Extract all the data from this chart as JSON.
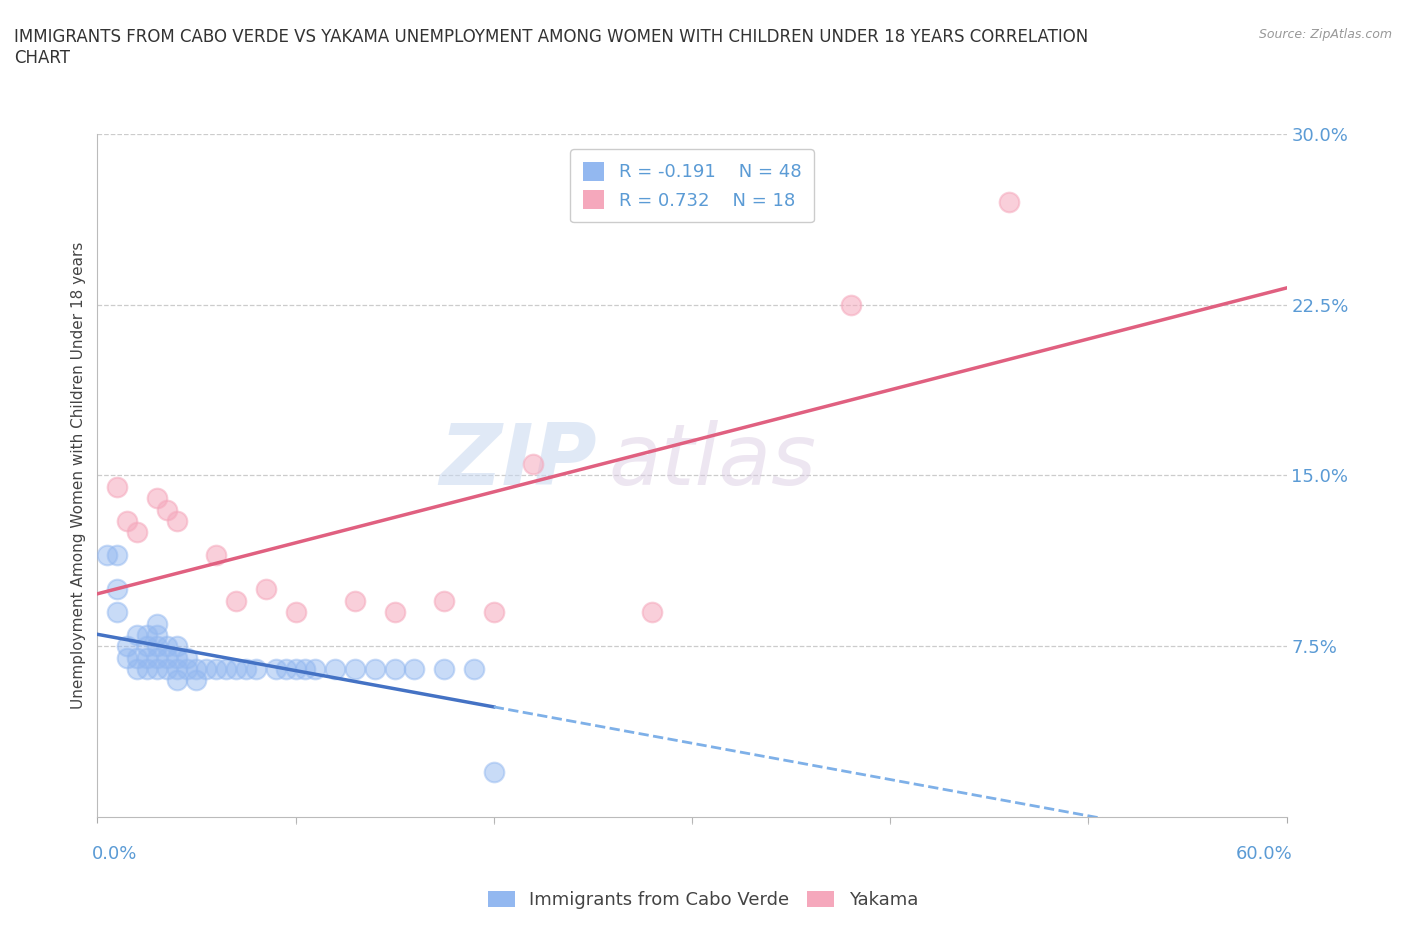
{
  "title": "IMMIGRANTS FROM CABO VERDE VS YAKAMA UNEMPLOYMENT AMONG WOMEN WITH CHILDREN UNDER 18 YEARS CORRELATION\nCHART",
  "source": "Source: ZipAtlas.com",
  "ylabel": "Unemployment Among Women with Children Under 18 years",
  "xlim": [
    0,
    0.6
  ],
  "ylim": [
    0,
    0.3
  ],
  "yticks": [
    0.075,
    0.15,
    0.225,
    0.3
  ],
  "ytick_labels": [
    "7.5%",
    "15.0%",
    "22.5%",
    "30.0%"
  ],
  "xtick_left_label": "0.0%",
  "xtick_right_label": "60.0%",
  "cabo_verde_color": "#93b8f0",
  "yakama_color": "#f5a8bc",
  "cabo_verde_line_solid_color": "#4472c4",
  "cabo_verde_line_dash_color": "#7eb0e8",
  "yakama_line_color": "#e06080",
  "cabo_verde_R": -0.191,
  "cabo_verde_N": 48,
  "yakama_R": 0.732,
  "yakama_N": 18,
  "watermark_top": "ZIP",
  "watermark_bottom": "atlas",
  "cabo_verde_x": [
    0.005,
    0.01,
    0.01,
    0.01,
    0.015,
    0.015,
    0.02,
    0.02,
    0.02,
    0.025,
    0.025,
    0.025,
    0.025,
    0.03,
    0.03,
    0.03,
    0.03,
    0.03,
    0.035,
    0.035,
    0.035,
    0.04,
    0.04,
    0.04,
    0.04,
    0.045,
    0.045,
    0.05,
    0.05,
    0.055,
    0.06,
    0.065,
    0.07,
    0.075,
    0.08,
    0.09,
    0.095,
    0.1,
    0.105,
    0.11,
    0.12,
    0.13,
    0.14,
    0.15,
    0.16,
    0.175,
    0.19,
    0.2
  ],
  "cabo_verde_y": [
    0.115,
    0.09,
    0.1,
    0.115,
    0.07,
    0.075,
    0.065,
    0.07,
    0.08,
    0.065,
    0.07,
    0.075,
    0.08,
    0.065,
    0.07,
    0.075,
    0.08,
    0.085,
    0.065,
    0.07,
    0.075,
    0.06,
    0.065,
    0.07,
    0.075,
    0.065,
    0.07,
    0.06,
    0.065,
    0.065,
    0.065,
    0.065,
    0.065,
    0.065,
    0.065,
    0.065,
    0.065,
    0.065,
    0.065,
    0.065,
    0.065,
    0.065,
    0.065,
    0.065,
    0.065,
    0.065,
    0.065,
    0.02
  ],
  "yakama_x": [
    0.01,
    0.015,
    0.02,
    0.03,
    0.035,
    0.04,
    0.06,
    0.07,
    0.085,
    0.1,
    0.13,
    0.15,
    0.175,
    0.2,
    0.22,
    0.28,
    0.38,
    0.46
  ],
  "yakama_y": [
    0.145,
    0.13,
    0.125,
    0.14,
    0.135,
    0.13,
    0.115,
    0.095,
    0.1,
    0.09,
    0.095,
    0.09,
    0.095,
    0.09,
    0.155,
    0.09,
    0.225,
    0.27
  ]
}
